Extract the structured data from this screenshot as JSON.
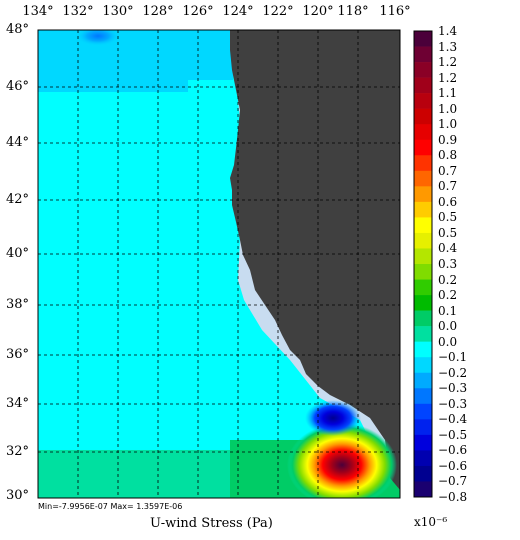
{
  "map": {
    "variable_label": "U-wind Stress (Pa)",
    "min_max_text": "Min=-7.9956E-07   Max= 1.3597E-06",
    "scale_factor": "x10⁻⁶",
    "lon_ticks": [
      "134°",
      "132°",
      "130°",
      "128°",
      "126°",
      "124°",
      "122°",
      "120°",
      "118°",
      "116°"
    ],
    "lat_ticks": [
      "48°",
      "46°",
      "44°",
      "42°",
      "40°",
      "38°",
      "36°",
      "34°",
      "32°",
      "30°"
    ],
    "colors": {
      "land": "#404040",
      "coastal_mask": "#c8dcf0",
      "ocean_zero": "#00ffff",
      "grid": "#000000"
    }
  },
  "colorbar": {
    "labels": [
      "1.4",
      "1.3",
      "1.2",
      "1.2",
      "1.1",
      "1.0",
      "1.0",
      "0.9",
      "0.8",
      "0.7",
      "0.7",
      "0.6",
      "0.5",
      "0.5",
      "0.4",
      "0.3",
      "0.2",
      "0.2",
      "0.1",
      "0.0",
      "0.0",
      "−0.1",
      "−0.2",
      "−0.3",
      "−0.3",
      "−0.4",
      "−0.5",
      "−0.6",
      "−0.6",
      "−0.7",
      "−0.8"
    ],
    "colors": [
      "#4b003a",
      "#6e0033",
      "#8a0026",
      "#a0001a",
      "#b8000e",
      "#cc0000",
      "#e60000",
      "#ff0000",
      "#ff3300",
      "#ff6600",
      "#ff9900",
      "#ffcc00",
      "#ffff00",
      "#e6f000",
      "#b4e600",
      "#80dc00",
      "#30cc00",
      "#00bb00",
      "#00cc66",
      "#00e0a0",
      "#00ffff",
      "#00d8ff",
      "#00aaff",
      "#0077ff",
      "#0044ff",
      "#0022ee",
      "#0000dd",
      "#0000b0",
      "#000090",
      "#1a0070"
    ]
  }
}
